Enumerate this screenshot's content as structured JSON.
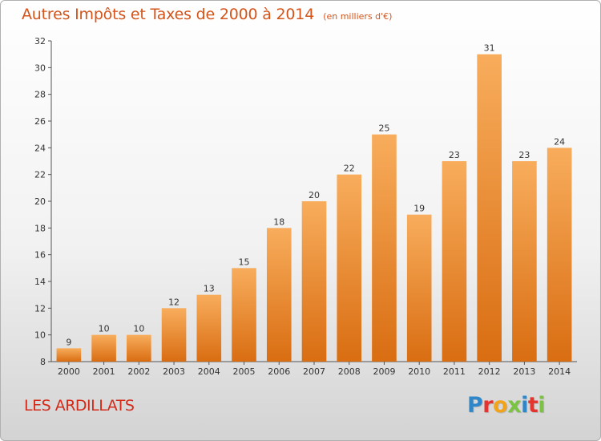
{
  "chart_data": {
    "type": "bar",
    "title": "Autres Impôts et Taxes de 2000 à 2014",
    "unit_note": "(en milliers d'€)",
    "categories": [
      "2000",
      "2001",
      "2002",
      "2003",
      "2004",
      "2005",
      "2006",
      "2007",
      "2008",
      "2009",
      "2010",
      "2011",
      "2012",
      "2013",
      "2014"
    ],
    "values": [
      9,
      10,
      10,
      12,
      13,
      15,
      18,
      20,
      22,
      25,
      19,
      23,
      31,
      23,
      24
    ],
    "ylim": [
      8,
      32
    ],
    "yticks": [
      8,
      10,
      12,
      14,
      16,
      18,
      20,
      22,
      24,
      26,
      28,
      30,
      32
    ],
    "grid": false,
    "bar_color": "#f28e2b",
    "bar_gradient": [
      "#f8ad5c",
      "#d96d12"
    ]
  },
  "footer": {
    "commune": "LES ARDILLATS",
    "logo_letters": [
      {
        "ch": "P",
        "color": "#2f86c8"
      },
      {
        "ch": "r",
        "color": "#e3342f"
      },
      {
        "ch": "o",
        "color": "#f2a31a"
      },
      {
        "ch": "x",
        "color": "#7cc243"
      },
      {
        "ch": "i",
        "color": "#2f86c8"
      },
      {
        "ch": "t",
        "color": "#e3342f"
      },
      {
        "ch": "i",
        "color": "#7cc243"
      }
    ]
  }
}
